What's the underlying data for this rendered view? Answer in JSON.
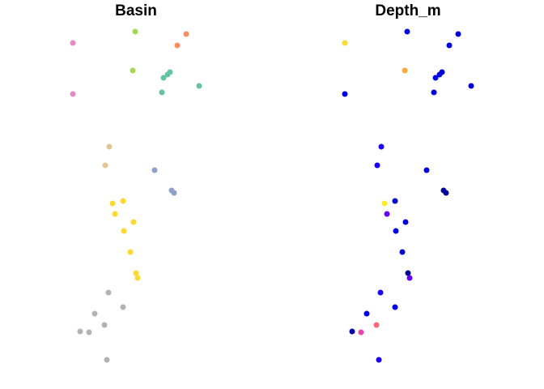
{
  "chart_data": [
    {
      "type": "scatter",
      "title": "Basin",
      "x": [
        167,
        230,
        219,
        90,
        164,
        210,
        207,
        202,
        246,
        200,
        90,
        135,
        130,
        191,
        212,
        215,
        139,
        152,
        142,
        165,
        153,
        161,
        168,
        170,
        134,
        152,
        117,
        129,
        99,
        110,
        132
      ],
      "y": [
        39,
        42,
        56,
        53,
        87,
        89,
        92,
        96,
        106,
        114,
        116,
        181,
        204,
        210,
        235,
        238,
        251,
        248,
        264,
        274,
        285,
        311,
        337,
        343,
        361,
        379,
        387,
        401,
        409,
        410,
        444
      ],
      "colors": [
        "#a6d854",
        "#fc8d62",
        "#fc8d62",
        "#e78ac3",
        "#a6d854",
        "#66c2a5",
        "#66c2a5",
        "#66c2a5",
        "#66c2a5",
        "#66c2a5",
        "#e78ac3",
        "#e5c494",
        "#e5c494",
        "#8da0cb",
        "#8da0cb",
        "#8da0cb",
        "#ffd92f",
        "#ffd92f",
        "#ffd92f",
        "#ffd92f",
        "#ffd92f",
        "#ffd92f",
        "#ffd92f",
        "#ffd92f",
        "#b3b3b3",
        "#b3b3b3",
        "#b3b3b3",
        "#b3b3b3",
        "#b3b3b3",
        "#b3b3b3",
        "#b3b3b3"
      ],
      "xlim": [
        0,
        336
      ],
      "ylim": [
        480,
        0
      ]
    },
    {
      "type": "scatter",
      "title": "Depth_m",
      "x": [
        167,
        230,
        219,
        90,
        164,
        210,
        207,
        202,
        246,
        200,
        90,
        135,
        130,
        191,
        212,
        215,
        139,
        152,
        142,
        165,
        153,
        161,
        168,
        170,
        134,
        152,
        117,
        129,
        99,
        110,
        132
      ],
      "y": [
        39,
        42,
        56,
        53,
        87,
        89,
        92,
        96,
        106,
        114,
        116,
        181,
        204,
        210,
        235,
        238,
        251,
        248,
        264,
        274,
        285,
        311,
        337,
        343,
        361,
        379,
        387,
        401,
        409,
        410,
        444
      ],
      "colors": [
        "#0000dd",
        "#0000dd",
        "#0000dd",
        "#ffd92f",
        "#ffaa33",
        "#0000dd",
        "#0000dd",
        "#0000ee",
        "#0000dd",
        "#0000ee",
        "#0000ee",
        "#1a00ff",
        "#1a00ff",
        "#0000dd",
        "#000099",
        "#000099",
        "#ffee22",
        "#0000cc",
        "#6600ff",
        "#0000dd",
        "#0000dd",
        "#0000cc",
        "#000099",
        "#6600ff",
        "#1a00ff",
        "#0000ee",
        "#0000ee",
        "#ff6677",
        "#0000aa",
        "#ee44aa",
        "#1a00ff"
      ],
      "xlim": [
        0,
        336
      ],
      "ylim": [
        480,
        0
      ]
    }
  ]
}
